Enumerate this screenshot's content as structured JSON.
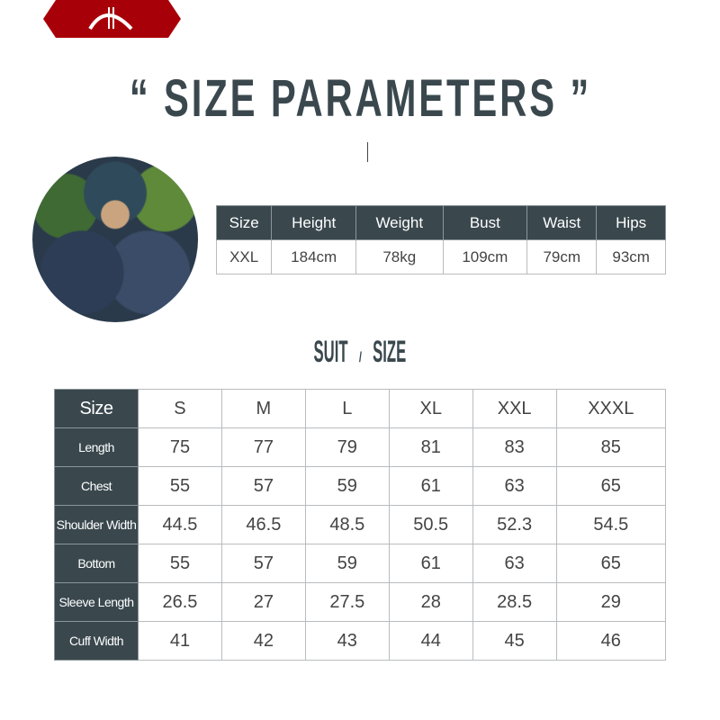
{
  "brand": {
    "logo_icon": "arch-logo-icon",
    "color": "#a80008"
  },
  "title": "“ SIZE PARAMETERS ”",
  "model": {
    "headers": [
      "Size",
      "Height",
      "Weight",
      "Bust",
      "Waist",
      "Hips"
    ],
    "values": [
      "XXL",
      "184cm",
      "78kg",
      "109cm",
      "79cm",
      "93cm"
    ]
  },
  "suit": {
    "title_left": "SUIT",
    "title_sep": "/",
    "title_right": "SIZE",
    "corner": "Size",
    "sizes": [
      "S",
      "M",
      "L",
      "XL",
      "XXL",
      "XXXL"
    ],
    "rows": [
      {
        "label": "Length",
        "values": [
          "75",
          "77",
          "79",
          "81",
          "83",
          "85"
        ]
      },
      {
        "label": "Chest",
        "values": [
          "55",
          "57",
          "59",
          "61",
          "63",
          "65"
        ]
      },
      {
        "label": "Shoulder Width",
        "values": [
          "44.5",
          "46.5",
          "48.5",
          "50.5",
          "52.3",
          "54.5"
        ]
      },
      {
        "label": "Bottom",
        "values": [
          "55",
          "57",
          "59",
          "61",
          "63",
          "65"
        ]
      },
      {
        "label": "Sleeve Length",
        "values": [
          "26.5",
          "27",
          "27.5",
          "28",
          "28.5",
          "29"
        ]
      },
      {
        "label": "Cuff Width",
        "values": [
          "41",
          "42",
          "43",
          "44",
          "45",
          "46"
        ]
      }
    ]
  },
  "colors": {
    "header": "#3a484e",
    "border": "#b8bcbf"
  }
}
